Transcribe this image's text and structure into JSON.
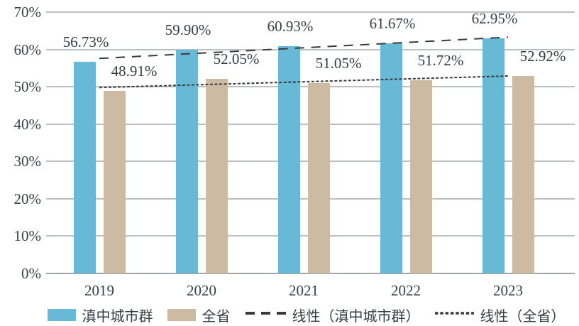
{
  "chart_data": {
    "type": "bar",
    "title": "",
    "categories": [
      "2019",
      "2020",
      "2021",
      "2022",
      "2023"
    ],
    "series": [
      {
        "name": "滇中城市群",
        "color": "#68b9d6",
        "values": [
          56.73,
          59.9,
          60.93,
          61.67,
          62.95
        ],
        "labels": [
          "56.73%",
          "59.90%",
          "60.93%",
          "61.67%",
          "62.95%"
        ]
      },
      {
        "name": "全省",
        "color": "#ccbaa2",
        "values": [
          48.91,
          52.05,
          51.05,
          51.72,
          52.92
        ],
        "labels": [
          "48.91%",
          "52.05%",
          "51.05%",
          "51.72%",
          "52.92%"
        ]
      }
    ],
    "trendlines": [
      {
        "name": "线性（滇中城市群）",
        "style": "dashed",
        "start_value": 57.59,
        "end_value": 63.28
      },
      {
        "name": "线性（全省）",
        "style": "dotted",
        "start_value": 49.79,
        "end_value": 52.87
      }
    ],
    "y_ticks": [
      "0%",
      "10%",
      "20%",
      "30%",
      "40%",
      "50%",
      "60%",
      "70%"
    ],
    "ylim": [
      0,
      70
    ],
    "xlabel": "",
    "ylabel": "",
    "grid": true,
    "legend_position": "bottom"
  },
  "legend": {
    "items": [
      {
        "label": "滇中城市群",
        "symbol": "blue-rect"
      },
      {
        "label": "全省",
        "symbol": "tan-rect"
      },
      {
        "label": "线性（滇中城市群）",
        "symbol": "dashed-line"
      },
      {
        "label": "线性（全省）",
        "symbol": "dotted-line"
      }
    ]
  },
  "colors": {
    "series_blue": "#68b9d6",
    "series_tan": "#ccbaa2",
    "gridline": "#bcbfc1",
    "axis_line": "#a2a5a7",
    "text": "#3a3f47",
    "trend_line": "#3a3a3a"
  }
}
